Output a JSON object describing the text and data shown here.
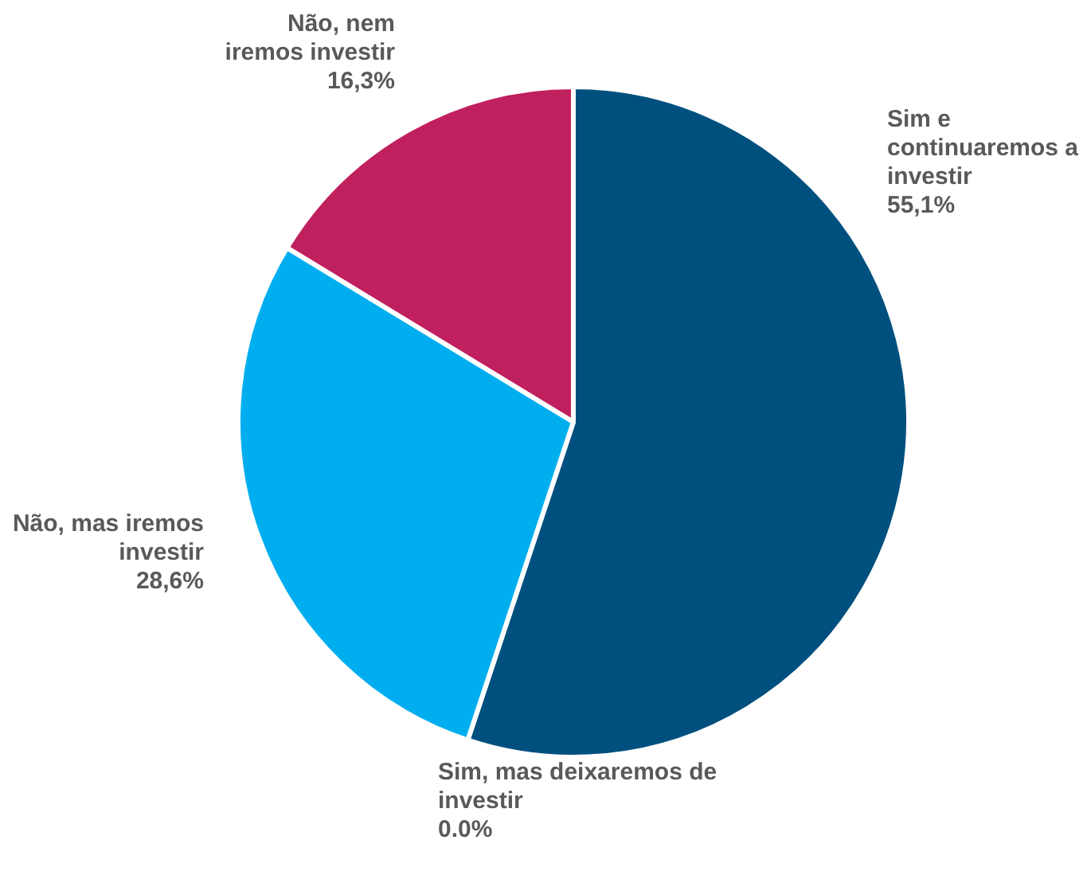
{
  "chart_data": {
    "type": "pie",
    "categories": [
      "Sim e continuaremos a investir",
      "Sim, mas deixaremos de investir",
      "Não, mas iremos investir",
      "Não, nem iremos investir"
    ],
    "values": [
      55.1,
      0.0,
      28.6,
      16.3
    ],
    "value_labels": [
      "55,1%",
      "0.0%",
      "28,6%",
      "16,3%"
    ],
    "colors": [
      "#00507f",
      "#7f7f7f",
      "#00aeef",
      "#c0205e"
    ],
    "legend": false
  }
}
